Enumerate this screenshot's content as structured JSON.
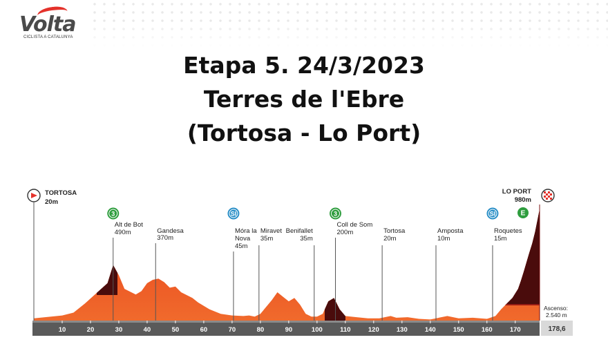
{
  "logo": {
    "name": "Volta",
    "subtitle": "CICLISTA A CATALUNYA"
  },
  "title": {
    "line1": "Etapa 5. 24/3/2023",
    "line2": "Terres de l'Ebre",
    "line3": "(Tortosa - Lo Port)"
  },
  "chart_data": {
    "type": "area",
    "x_label_unit": "km",
    "xlim": [
      0,
      178.6
    ],
    "ylim": [
      0,
      1000
    ],
    "x_ticks": [
      10,
      20,
      30,
      40,
      50,
      60,
      70,
      80,
      90,
      100,
      110,
      120,
      130,
      140,
      150,
      160,
      170
    ],
    "distance_total_label": "178,6",
    "profile": [
      [
        0,
        20
      ],
      [
        10,
        45
      ],
      [
        14,
        70
      ],
      [
        18,
        150
      ],
      [
        22,
        240
      ],
      [
        26,
        330
      ],
      [
        28,
        490
      ],
      [
        30,
        400
      ],
      [
        32,
        280
      ],
      [
        36,
        230
      ],
      [
        38,
        260
      ],
      [
        40,
        330
      ],
      [
        42,
        360
      ],
      [
        44,
        370
      ],
      [
        46,
        340
      ],
      [
        48,
        290
      ],
      [
        50,
        300
      ],
      [
        52,
        250
      ],
      [
        56,
        200
      ],
      [
        58,
        160
      ],
      [
        62,
        100
      ],
      [
        66,
        60
      ],
      [
        70,
        45
      ],
      [
        74,
        40
      ],
      [
        76,
        45
      ],
      [
        78,
        35
      ],
      [
        80,
        60
      ],
      [
        84,
        180
      ],
      [
        86,
        250
      ],
      [
        88,
        210
      ],
      [
        90,
        170
      ],
      [
        92,
        200
      ],
      [
        94,
        140
      ],
      [
        96,
        60
      ],
      [
        98,
        35
      ],
      [
        100,
        35
      ],
      [
        102,
        60
      ],
      [
        104,
        170
      ],
      [
        106,
        200
      ],
      [
        108,
        100
      ],
      [
        110,
        40
      ],
      [
        114,
        30
      ],
      [
        118,
        20
      ],
      [
        122,
        20
      ],
      [
        126,
        40
      ],
      [
        128,
        25
      ],
      [
        132,
        30
      ],
      [
        136,
        15
      ],
      [
        140,
        10
      ],
      [
        146,
        40
      ],
      [
        150,
        20
      ],
      [
        155,
        25
      ],
      [
        160,
        15
      ],
      [
        163,
        40
      ],
      [
        165,
        100
      ],
      [
        167,
        150
      ],
      [
        169,
        200
      ],
      [
        171,
        280
      ],
      [
        172,
        350
      ],
      [
        173,
        430
      ],
      [
        175,
        600
      ],
      [
        176,
        680
      ],
      [
        177,
        780
      ],
      [
        178.6,
        980
      ]
    ],
    "waypoints": [
      {
        "km": 0,
        "name": "TORTOSA",
        "alt": "20m",
        "type": "start"
      },
      {
        "km": 28,
        "name": "Alt de Bot",
        "alt": "490m",
        "type": "kom",
        "badge": "3"
      },
      {
        "km": 43,
        "name": "Gandesa",
        "alt": "370m",
        "type": "town"
      },
      {
        "km": 70.5,
        "name": "Móra la Nova",
        "alt": "45m",
        "type": "sprint",
        "badge": "SI"
      },
      {
        "km": 79.5,
        "name": "Miravet",
        "alt": "35m",
        "type": "town"
      },
      {
        "km": 99,
        "name": "Benifallet",
        "alt": "35m",
        "type": "town"
      },
      {
        "km": 106.5,
        "name": "Coll de Som",
        "alt": "200m",
        "type": "kom",
        "badge": "3"
      },
      {
        "km": 123,
        "name": "Tortosa",
        "alt": "20m",
        "type": "town"
      },
      {
        "km": 142,
        "name": "Amposta",
        "alt": "10m",
        "type": "town"
      },
      {
        "km": 162,
        "name": "Roquetes",
        "alt": "15m",
        "type": "sprint",
        "badge": "SI"
      },
      {
        "km": 178.6,
        "name": "LO PORT",
        "alt": "980m",
        "type": "finish",
        "badge": "E"
      }
    ],
    "ascent_label": "Ascenso:",
    "ascent_value": "2.540 m",
    "colors": {
      "profile_main": "#e8401c",
      "profile_light": "#f26a2e",
      "climb_dark": "#4a0c0c",
      "axis_bar": "#5a5a5a",
      "kom_badge": "#2e9d3e",
      "sprint_badge": "#2a8fc7"
    }
  }
}
